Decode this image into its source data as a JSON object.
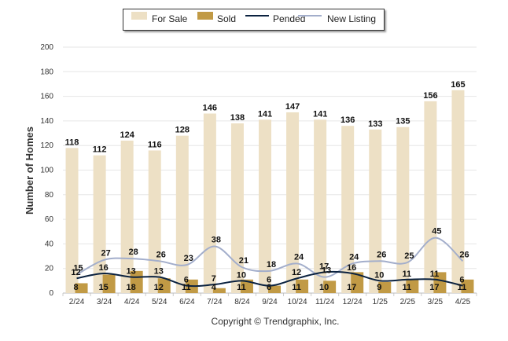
{
  "chart_data": {
    "type": "bar",
    "title": "",
    "xlabel": "",
    "ylabel": "Number of Homes",
    "ylim": [
      0,
      200
    ],
    "yticks": [
      0,
      20,
      40,
      60,
      80,
      100,
      120,
      140,
      160,
      180,
      200
    ],
    "grid": true,
    "legend_position": "top-center",
    "categories": [
      "2/24",
      "3/24",
      "4/24",
      "5/24",
      "6/24",
      "7/24",
      "8/24",
      "9/24",
      "10/24",
      "11/24",
      "12/24",
      "1/25",
      "2/25",
      "3/25",
      "4/25"
    ],
    "series": [
      {
        "name": "For Sale",
        "kind": "bar",
        "color": "#ede0c5",
        "values": [
          118,
          112,
          124,
          116,
          128,
          146,
          138,
          141,
          147,
          141,
          136,
          133,
          135,
          156,
          165
        ]
      },
      {
        "name": "Sold",
        "kind": "bar",
        "color": "#c19a45",
        "values": [
          8,
          15,
          18,
          12,
          11,
          4,
          11,
          6,
          11,
          10,
          17,
          9,
          11,
          17,
          11
        ]
      },
      {
        "name": "Pended",
        "kind": "line",
        "color": "#0b2240",
        "values": [
          12,
          16,
          13,
          13,
          6,
          7,
          10,
          6,
          12,
          17,
          16,
          10,
          11,
          11,
          6
        ]
      },
      {
        "name": "New Listing",
        "kind": "line",
        "color": "#a3aecb",
        "values": [
          15,
          27,
          28,
          26,
          23,
          38,
          21,
          18,
          24,
          13,
          24,
          26,
          25,
          45,
          26
        ]
      }
    ]
  },
  "footer": {
    "copyright": "Copyright © Trendgraphix, Inc."
  }
}
